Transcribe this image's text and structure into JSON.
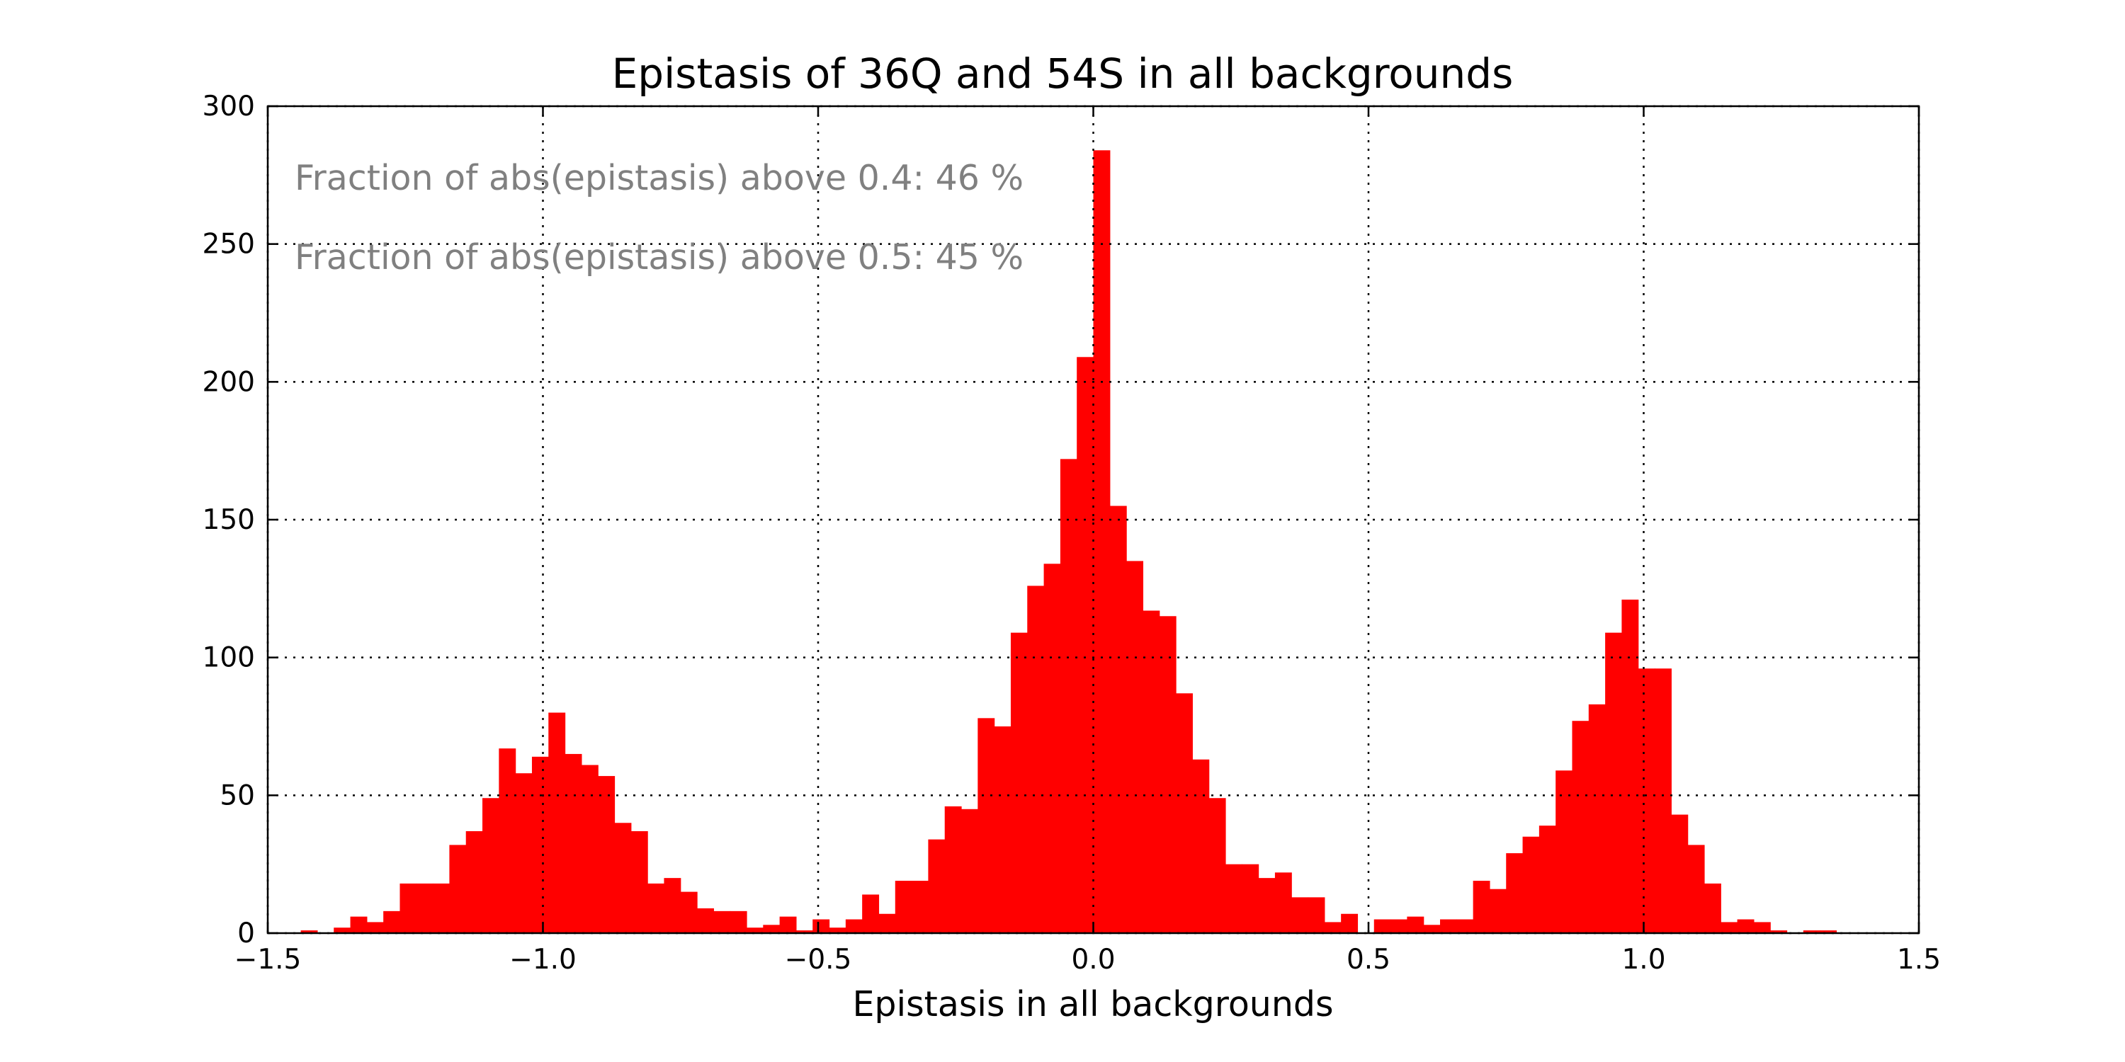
{
  "chart_data": {
    "type": "bar",
    "title": "Epistasis of 36Q and 54S in all backgrounds",
    "xlabel": "Epistasis in all backgrounds",
    "ylabel": "",
    "xlim": [
      -1.5,
      1.5
    ],
    "ylim": [
      0,
      300
    ],
    "x_ticks": [
      -1.5,
      -1.0,
      -0.5,
      0.0,
      0.5,
      1.0,
      1.5
    ],
    "x_tick_labels": [
      "−1.5",
      "−1.0",
      "−0.5",
      "0.0",
      "0.5",
      "1.0",
      "1.5"
    ],
    "y_ticks": [
      0,
      50,
      100,
      150,
      200,
      250,
      300
    ],
    "y_tick_labels": [
      "0",
      "50",
      "100",
      "150",
      "200",
      "250",
      "300"
    ],
    "grid": true,
    "bar_color": "#ff0000",
    "annotations": [
      "Fraction of abs(epistasis) above 0.4: 46 %",
      "Fraction of abs(epistasis) above 0.5: 45 %"
    ],
    "bins": {
      "start": -1.5,
      "width": 0.03,
      "counts": [
        0,
        0,
        1,
        0,
        2,
        6,
        4,
        8,
        18,
        18,
        18,
        32,
        37,
        49,
        67,
        58,
        64,
        80,
        65,
        61,
        57,
        40,
        37,
        18,
        20,
        15,
        9,
        8,
        8,
        2,
        3,
        6,
        1,
        5,
        2,
        5,
        14,
        7,
        19,
        19,
        34,
        46,
        45,
        78,
        75,
        109,
        126,
        134,
        172,
        209,
        284,
        155,
        135,
        117,
        115,
        87,
        63,
        49,
        25,
        25,
        20,
        22,
        13,
        13,
        4,
        7,
        0,
        5,
        5,
        6,
        3,
        5,
        5,
        19,
        16,
        29,
        35,
        39,
        59,
        77,
        83,
        109,
        121,
        96,
        96,
        43,
        32,
        18,
        4,
        5,
        4,
        1,
        0,
        1,
        1,
        0,
        0,
        0,
        0,
        0
      ]
    }
  }
}
